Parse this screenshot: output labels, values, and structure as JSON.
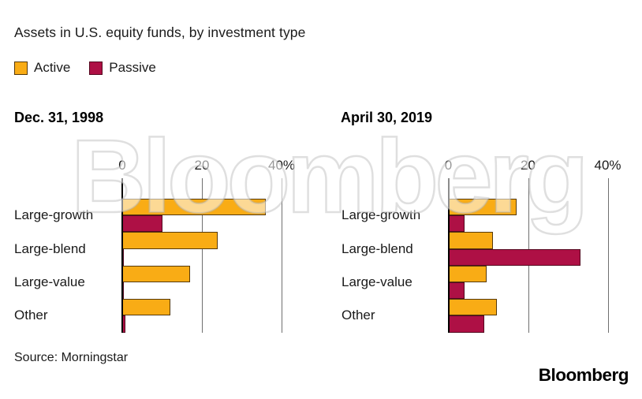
{
  "page": {
    "title": "Assets in U.S. equity funds, by investment type",
    "source": "Source: Morningstar",
    "brand_logo": "Bloomberg",
    "watermark": "Bloomberg"
  },
  "legend": {
    "items": [
      {
        "label": "Active",
        "color": "#F9AC15",
        "border": "#56390B"
      },
      {
        "label": "Passive",
        "color": "#AE1045",
        "border": "#54081F"
      }
    ]
  },
  "colors": {
    "active": "#F9AC15",
    "active_border": "#56390B",
    "passive": "#AE1045",
    "passive_border": "#54081F",
    "gridline": "#6f6f6f",
    "axis": "#000000",
    "text": "#1a1a1a"
  },
  "chart_data": [
    {
      "type": "bar",
      "orientation": "horizontal",
      "title": "Dec. 31, 1998",
      "unit": "%",
      "xlim": [
        0,
        40
      ],
      "xticks": [
        {
          "value": 0,
          "label": "0"
        },
        {
          "value": 20,
          "label": "20"
        },
        {
          "value": 40,
          "label": "40%"
        }
      ],
      "categories": [
        "Large-growth",
        "Large-blend",
        "Large-value",
        "Other"
      ],
      "series": [
        {
          "name": "Active",
          "values": [
            36,
            24,
            17,
            12
          ]
        },
        {
          "name": "Passive",
          "values": [
            10,
            0.4,
            0.2,
            0.7
          ]
        }
      ]
    },
    {
      "type": "bar",
      "orientation": "horizontal",
      "title": "April 30, 2019",
      "unit": "%",
      "xlim": [
        0,
        40
      ],
      "xticks": [
        {
          "value": 0,
          "label": "0"
        },
        {
          "value": 20,
          "label": "20"
        },
        {
          "value": 40,
          "label": "40%"
        }
      ],
      "categories": [
        "Large-growth",
        "Large-blend",
        "Large-value",
        "Other"
      ],
      "series": [
        {
          "name": "Active",
          "values": [
            17,
            11,
            9.5,
            12
          ]
        },
        {
          "name": "Passive",
          "values": [
            4,
            33,
            4,
            9
          ]
        }
      ]
    }
  ]
}
